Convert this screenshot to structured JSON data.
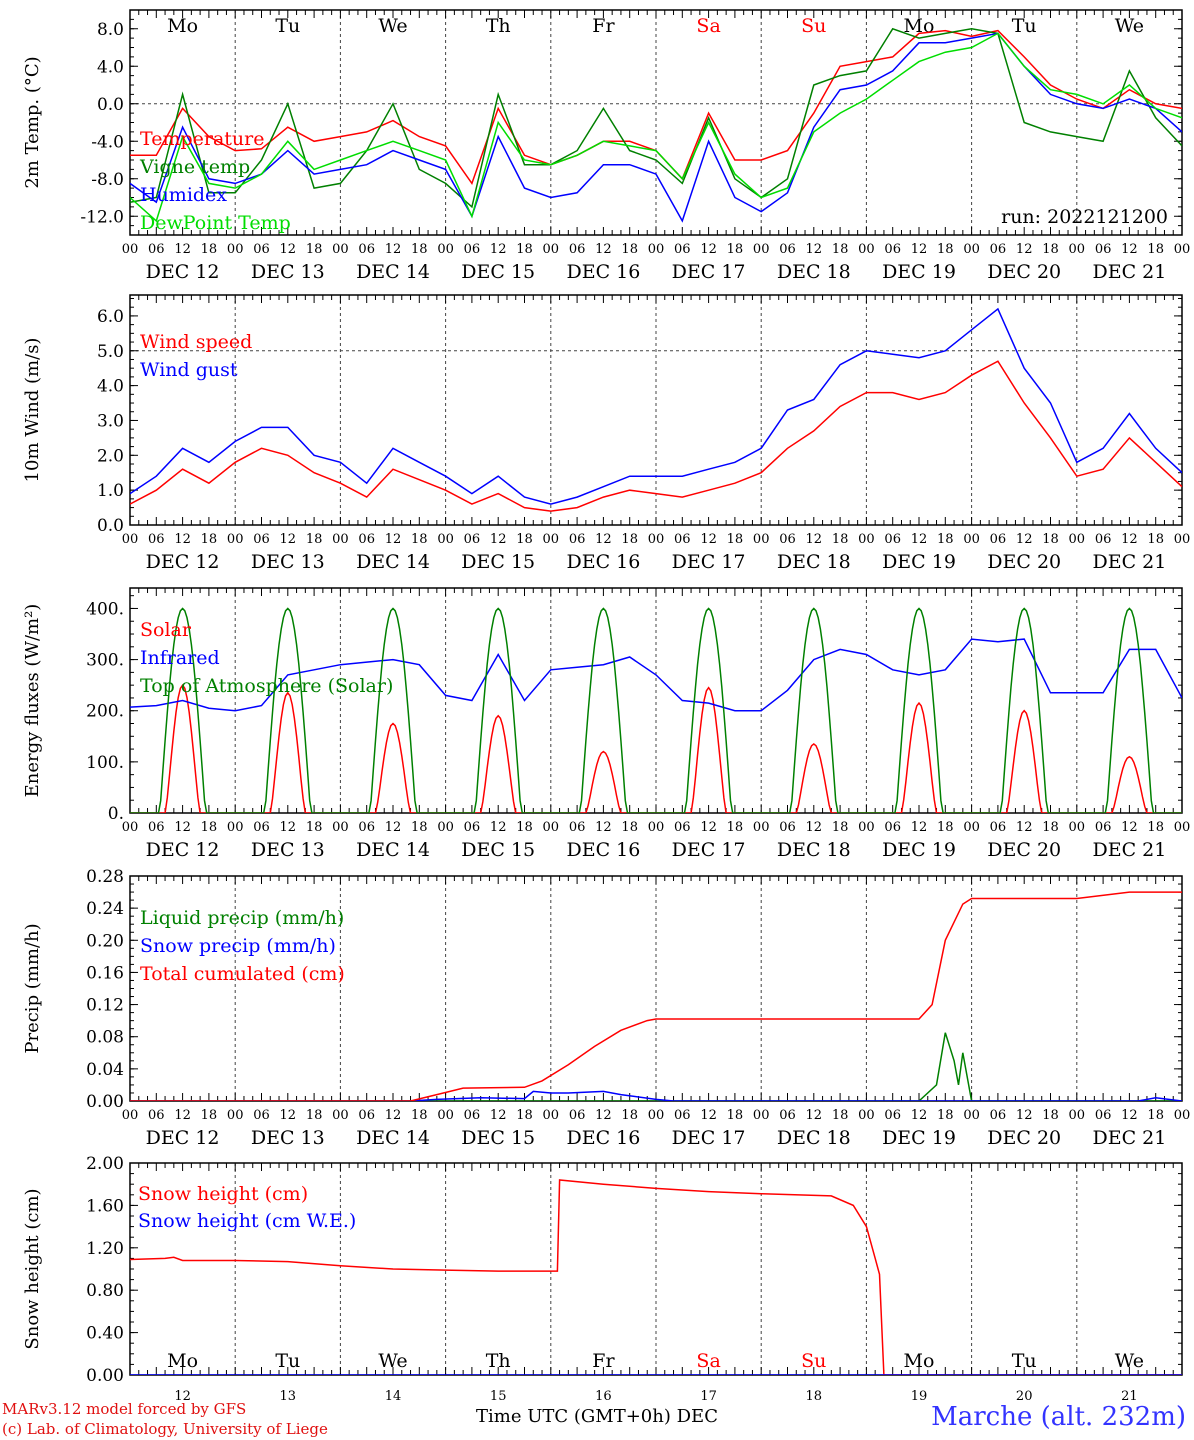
{
  "footer": {
    "credit_line1": "MARv3.12 model forced by GFS",
    "credit_line2": "(c) Lab. of Climatology, University of Liege",
    "station": "Marche (alt. 232m)",
    "xlabel": "Time UTC (GMT+0h)",
    "xlabel_suffix": "DEC"
  },
  "colors": {
    "red": "#ff0000",
    "dark_green": "#008000",
    "blue": "#0000ff",
    "light_green": "#00dd00",
    "weekend": "#ff0000"
  },
  "days": [
    "Mo",
    "Tu",
    "We",
    "Th",
    "Fr",
    "Sa",
    "Su",
    "Mo",
    "Tu",
    "We"
  ],
  "weekend_days": [
    5,
    6
  ],
  "dates": [
    "DEC 12",
    "DEC 13",
    "DEC 14",
    "DEC 15",
    "DEC 16",
    "DEC 17",
    "DEC 18",
    "DEC 19",
    "DEC 20",
    "DEC 21"
  ],
  "hour_ticks": [
    "00",
    "06",
    "12",
    "18"
  ],
  "last_tick": "00",
  "bottom_day_numbers": [
    "12",
    "13",
    "14",
    "15",
    "16",
    "17",
    "18",
    "19",
    "20",
    "21"
  ],
  "chart_data": [
    {
      "type": "line",
      "ylabel": "2m Temp. (°C)",
      "ylim": [
        -14,
        10
      ],
      "yticks": [
        "-12.0",
        "-8.0",
        "-4.0",
        "0.0",
        "4.0",
        "8.0"
      ],
      "ytick_values": [
        -12,
        -8,
        -4,
        0,
        4,
        8
      ],
      "ref_line": 0,
      "run_label": "run: 2022121200",
      "series": [
        {
          "name": "Temperature",
          "color": "red",
          "x": [
            0,
            6,
            12,
            18,
            24,
            30,
            36,
            42,
            48,
            54,
            60,
            66,
            72,
            78,
            84,
            90,
            96,
            102,
            108,
            114,
            120,
            126,
            132,
            138,
            144,
            150,
            156,
            162,
            168,
            174,
            180,
            186,
            192,
            198,
            204,
            210,
            216,
            222,
            228,
            234,
            240
          ],
          "y": [
            -5.5,
            -5.5,
            -0.5,
            -3.5,
            -5.0,
            -4.8,
            -2.5,
            -4.0,
            -3.5,
            -3.0,
            -1.8,
            -3.5,
            -4.5,
            -8.5,
            -0.5,
            -5.5,
            -6.5,
            -5.5,
            -4.0,
            -4.0,
            -5.0,
            -8.0,
            -1.0,
            -6.0,
            -6.0,
            -5.0,
            -1.0,
            4.0,
            4.5,
            5.0,
            7.5,
            7.8,
            7.2,
            7.8,
            5.0,
            2.0,
            0.5,
            -0.5,
            1.5,
            0.0,
            -0.5
          ]
        },
        {
          "name": "Vigne temp",
          "color": "dark_green",
          "x": [
            0,
            6,
            12,
            18,
            24,
            30,
            36,
            42,
            48,
            54,
            60,
            66,
            72,
            78,
            84,
            90,
            96,
            102,
            108,
            114,
            120,
            126,
            132,
            138,
            144,
            150,
            156,
            162,
            168,
            174,
            180,
            186,
            192,
            198,
            204,
            210,
            216,
            222,
            228,
            234,
            240
          ],
          "y": [
            -10.5,
            -10.0,
            1.0,
            -9.5,
            -9.5,
            -6.0,
            0.0,
            -9.0,
            -8.5,
            -5.0,
            0.0,
            -7.0,
            -8.5,
            -11.0,
            1.0,
            -6.5,
            -6.5,
            -5.0,
            -0.5,
            -5.0,
            -6.0,
            -8.5,
            -1.5,
            -8.0,
            -10.0,
            -8.0,
            2.0,
            3.0,
            3.5,
            8.0,
            7.0,
            7.5,
            8.0,
            7.5,
            -2.0,
            -3.0,
            -3.5,
            -4.0,
            3.5,
            -1.5,
            -4.5
          ]
        },
        {
          "name": "Humidex",
          "color": "blue",
          "x": [
            0,
            6,
            12,
            18,
            24,
            30,
            36,
            42,
            48,
            54,
            60,
            66,
            72,
            78,
            84,
            90,
            96,
            102,
            108,
            114,
            120,
            126,
            132,
            138,
            144,
            150,
            156,
            162,
            168,
            174,
            180,
            186,
            192,
            198,
            204,
            210,
            216,
            222,
            228,
            234,
            240
          ],
          "y": [
            -8.5,
            -10.5,
            -2.5,
            -8.0,
            -8.5,
            -7.5,
            -5.0,
            -7.5,
            -7.0,
            -6.5,
            -5.0,
            -6.0,
            -7.0,
            -12.0,
            -3.5,
            -9.0,
            -10.0,
            -9.5,
            -6.5,
            -6.5,
            -7.5,
            -12.5,
            -4.0,
            -10.0,
            -11.5,
            -9.5,
            -2.5,
            1.5,
            2.0,
            3.5,
            6.5,
            6.5,
            7.0,
            7.5,
            4.0,
            1.0,
            0.0,
            -0.5,
            0.5,
            -0.5,
            -3.0
          ]
        },
        {
          "name": "DewPoint Temp",
          "color": "light_green",
          "x": [
            0,
            6,
            12,
            18,
            24,
            30,
            36,
            42,
            48,
            54,
            60,
            66,
            72,
            78,
            84,
            90,
            96,
            102,
            108,
            114,
            120,
            126,
            132,
            138,
            144,
            150,
            156,
            162,
            168,
            174,
            180,
            186,
            192,
            198,
            204,
            210,
            216,
            222,
            228,
            234,
            240
          ],
          "y": [
            -10.0,
            -12.5,
            -3.5,
            -8.5,
            -9.0,
            -7.5,
            -4.0,
            -7.0,
            -6.0,
            -5.0,
            -4.0,
            -5.0,
            -6.0,
            -12.0,
            -2.0,
            -6.0,
            -6.5,
            -5.5,
            -4.0,
            -4.5,
            -5.0,
            -8.0,
            -2.0,
            -7.5,
            -10.0,
            -9.0,
            -3.0,
            -1.0,
            0.5,
            2.5,
            4.5,
            5.5,
            6.0,
            7.5,
            4.0,
            1.5,
            1.0,
            0.0,
            2.0,
            -0.5,
            -1.5
          ]
        }
      ]
    },
    {
      "type": "line",
      "ylabel": "10m Wind (m/s)",
      "ylim": [
        0,
        6.6
      ],
      "yticks": [
        "0.0",
        "1.0",
        "2.0",
        "3.0",
        "4.0",
        "5.0",
        "6.0"
      ],
      "ytick_values": [
        0,
        1,
        2,
        3,
        4,
        5,
        6
      ],
      "ref_line": 5,
      "series": [
        {
          "name": "Wind speed",
          "color": "red",
          "x": [
            0,
            6,
            12,
            18,
            24,
            30,
            36,
            42,
            48,
            54,
            60,
            66,
            72,
            78,
            84,
            90,
            96,
            102,
            108,
            114,
            120,
            126,
            132,
            138,
            144,
            150,
            156,
            162,
            168,
            174,
            180,
            186,
            192,
            198,
            204,
            210,
            216,
            222,
            228,
            234,
            240
          ],
          "y": [
            0.6,
            1.0,
            1.6,
            1.2,
            1.8,
            2.2,
            2.0,
            1.5,
            1.2,
            0.8,
            1.6,
            1.3,
            1.0,
            0.6,
            0.9,
            0.5,
            0.4,
            0.5,
            0.8,
            1.0,
            0.9,
            0.8,
            1.0,
            1.2,
            1.5,
            2.2,
            2.7,
            3.4,
            3.8,
            3.8,
            3.6,
            3.8,
            4.3,
            4.7,
            3.5,
            2.5,
            1.4,
            1.6,
            2.5,
            1.8,
            1.1
          ]
        },
        {
          "name": "Wind gust",
          "color": "blue",
          "x": [
            0,
            6,
            12,
            18,
            24,
            30,
            36,
            42,
            48,
            54,
            60,
            66,
            72,
            78,
            84,
            90,
            96,
            102,
            108,
            114,
            120,
            126,
            132,
            138,
            144,
            150,
            156,
            162,
            168,
            174,
            180,
            186,
            192,
            198,
            204,
            210,
            216,
            222,
            228,
            234,
            240
          ],
          "y": [
            0.9,
            1.4,
            2.2,
            1.8,
            2.4,
            2.8,
            2.8,
            2.0,
            1.8,
            1.2,
            2.2,
            1.8,
            1.4,
            0.9,
            1.4,
            0.8,
            0.6,
            0.8,
            1.1,
            1.4,
            1.4,
            1.4,
            1.6,
            1.8,
            2.2,
            3.3,
            3.6,
            4.6,
            5.0,
            4.9,
            4.8,
            5.0,
            5.6,
            6.2,
            4.5,
            3.5,
            1.8,
            2.2,
            3.2,
            2.2,
            1.5
          ]
        }
      ]
    },
    {
      "type": "line",
      "ylabel": "Energy fluxes (W/m²)",
      "ylim": [
        0,
        440
      ],
      "yticks": [
        "0.",
        "100.",
        "200.",
        "300.",
        "400."
      ],
      "ytick_values": [
        0,
        100,
        200,
        300,
        400
      ],
      "solar_peaks": [
        250,
        235,
        175,
        190,
        120,
        245,
        135,
        215,
        200,
        110
      ],
      "toa_peak": 400,
      "series": [
        {
          "name": "Solar",
          "color": "red"
        },
        {
          "name": "Infrared",
          "color": "blue",
          "x": [
            0,
            6,
            12,
            18,
            24,
            30,
            36,
            42,
            48,
            54,
            60,
            66,
            72,
            78,
            84,
            90,
            96,
            102,
            108,
            114,
            120,
            126,
            132,
            138,
            144,
            150,
            156,
            162,
            168,
            174,
            180,
            186,
            192,
            198,
            204,
            210,
            216,
            222,
            228,
            234,
            240
          ],
          "y": [
            207,
            210,
            220,
            205,
            200,
            210,
            270,
            280,
            290,
            295,
            300,
            290,
            230,
            220,
            310,
            220,
            280,
            285,
            290,
            305,
            270,
            220,
            215,
            200,
            200,
            240,
            300,
            320,
            310,
            280,
            270,
            280,
            340,
            335,
            340,
            235,
            235,
            235,
            320,
            320,
            225
          ]
        },
        {
          "name": "Top of Atmosphere (Solar)",
          "color": "dark_green"
        }
      ]
    },
    {
      "type": "line",
      "ylabel": "Precip (mm/h)",
      "ylim": [
        0,
        0.28
      ],
      "yticks": [
        "0.00",
        "0.04",
        "0.08",
        "0.12",
        "0.16",
        "0.20",
        "0.24",
        "0.28"
      ],
      "ytick_values": [
        0,
        0.04,
        0.08,
        0.12,
        0.16,
        0.2,
        0.24,
        0.28
      ],
      "series": [
        {
          "name": "Liquid precip (mm/h)",
          "color": "dark_green",
          "x": [
            0,
            180,
            184,
            186,
            188,
            189,
            190,
            192,
            194,
            195,
            196,
            240
          ],
          "y": [
            0,
            0,
            0.02,
            0.085,
            0.05,
            0.02,
            0.06,
            0.0,
            0.0,
            0.0,
            0.0,
            0
          ]
        },
        {
          "name": "Snow precip (mm/h)",
          "color": "blue",
          "x": [
            0,
            64,
            70,
            80,
            90,
            92,
            96,
            100,
            108,
            112,
            120,
            124,
            230,
            234,
            240
          ],
          "y": [
            0,
            0,
            0.002,
            0.004,
            0.003,
            0.012,
            0.01,
            0.01,
            0.012,
            0.008,
            0.002,
            0,
            0,
            0.004,
            0
          ]
        },
        {
          "name": "Total cumulated (cm)",
          "color": "red",
          "x": [
            0,
            64,
            70,
            76,
            90,
            94,
            100,
            106,
            112,
            118,
            120,
            124,
            132,
            180,
            183,
            186,
            190,
            192,
            200,
            216,
            228,
            240
          ],
          "y": [
            0,
            0,
            0.008,
            0.016,
            0.017,
            0.025,
            0.045,
            0.068,
            0.088,
            0.1,
            0.102,
            0.102,
            0.102,
            0.102,
            0.12,
            0.2,
            0.245,
            0.252,
            0.252,
            0.252,
            0.26,
            0.26
          ]
        }
      ]
    },
    {
      "type": "line",
      "ylabel": "Snow height (cm)",
      "ylim": [
        0,
        2.0
      ],
      "yticks": [
        "0.00",
        "0.40",
        "0.80",
        "1.20",
        "1.60",
        "2.00"
      ],
      "ytick_values": [
        0,
        0.4,
        0.8,
        1.2,
        1.6,
        2.0
      ],
      "series": [
        {
          "name": "Snow height (cm)",
          "color": "red",
          "x": [
            0,
            8,
            10,
            12,
            24,
            36,
            48,
            60,
            72,
            84,
            96,
            97.5,
            98,
            108,
            120,
            132,
            144,
            160,
            165,
            168,
            170,
            171,
            172,
            240
          ],
          "y": [
            1.09,
            1.1,
            1.11,
            1.08,
            1.08,
            1.07,
            1.03,
            1.0,
            0.99,
            0.98,
            0.98,
            0.98,
            1.84,
            1.8,
            1.76,
            1.73,
            1.71,
            1.69,
            1.6,
            1.4,
            1.1,
            0.95,
            0.0,
            0.0
          ]
        },
        {
          "name": "Snow height (cm W.E.)",
          "color": "blue",
          "x": [
            0,
            240
          ],
          "y": [
            0,
            0
          ]
        }
      ]
    }
  ]
}
